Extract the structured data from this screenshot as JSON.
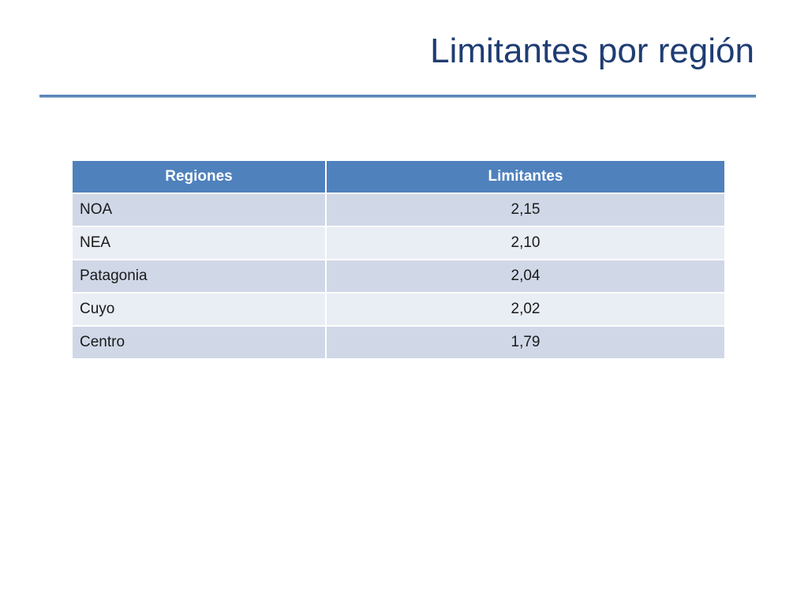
{
  "slide": {
    "title": "Limitantes por región"
  },
  "table": {
    "headers": [
      "Regiones",
      "Limitantes"
    ],
    "rows": [
      {
        "region": "NOA",
        "value": "2,15"
      },
      {
        "region": "NEA",
        "value": "2,10"
      },
      {
        "region": "Patagonia",
        "value": "2,04"
      },
      {
        "region": "Cuyo",
        "value": "2,02"
      },
      {
        "region": "Centro",
        "value": "1,79"
      }
    ]
  },
  "colors": {
    "title": "#1F3D73",
    "header_bg": "#4F81BD",
    "row_odd_bg": "#D0D8E8",
    "row_even_bg": "#E9EDF4",
    "rule": "#5B86B8"
  }
}
